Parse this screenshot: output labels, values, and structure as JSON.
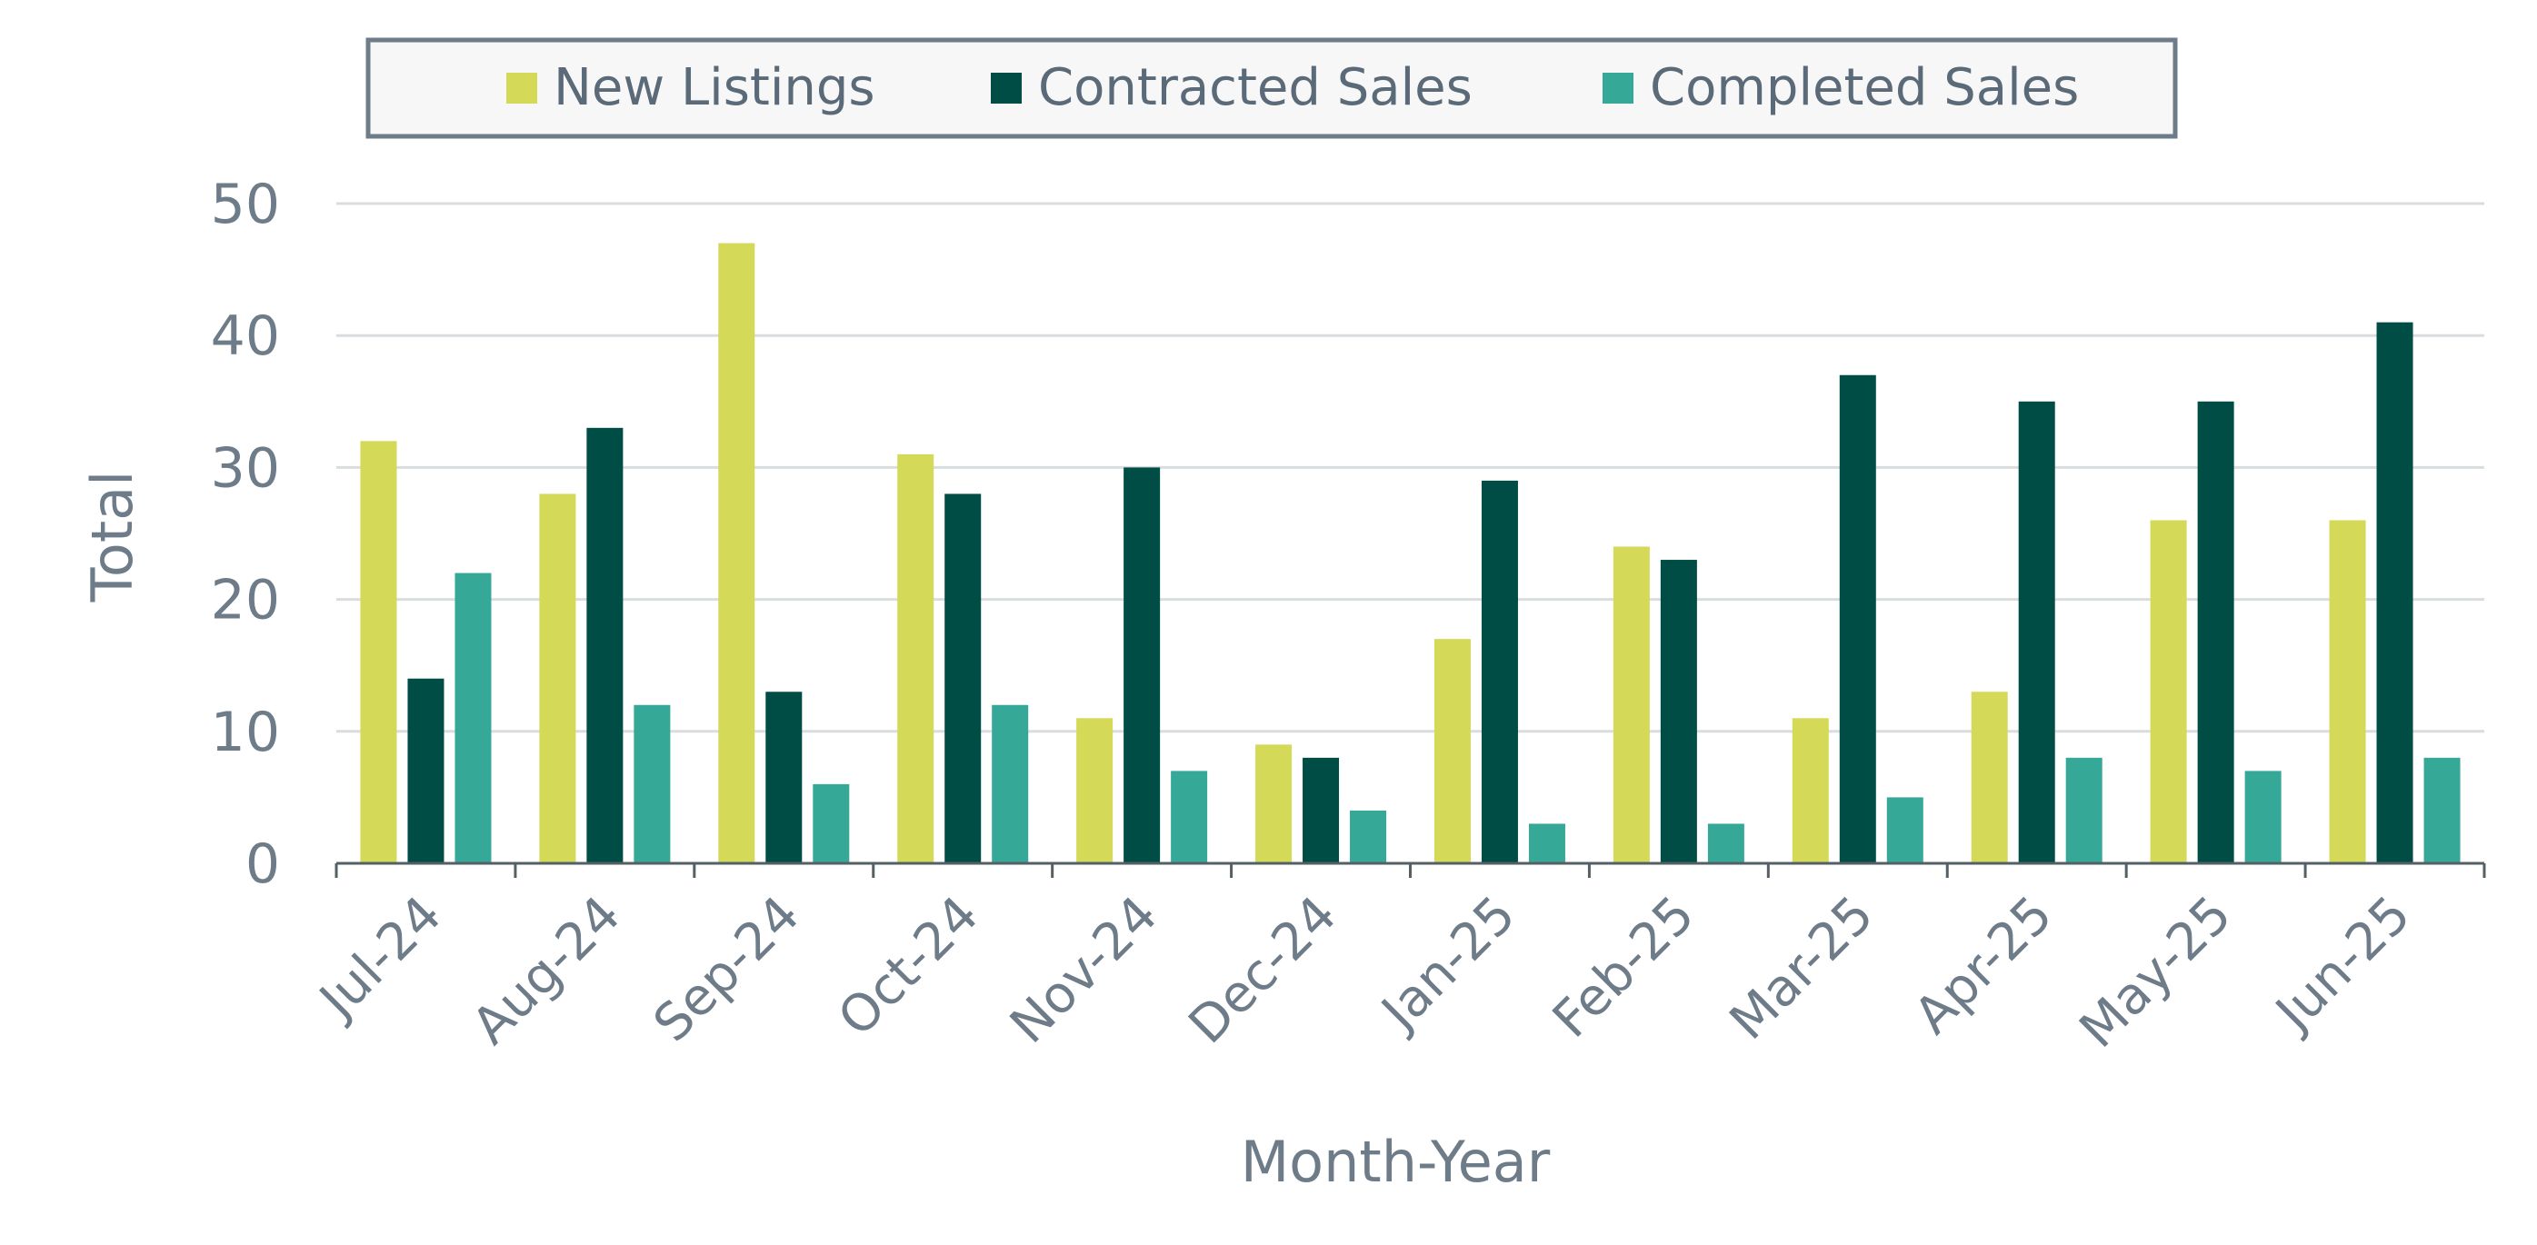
{
  "chart_data": {
    "type": "bar",
    "categories": [
      "Jul-24",
      "Aug-24",
      "Sep-24",
      "Oct-24",
      "Nov-24",
      "Dec-24",
      "Jan-25",
      "Feb-25",
      "Mar-25",
      "Apr-25",
      "May-25",
      "Jun-25"
    ],
    "series": [
      {
        "name": "New Listings",
        "color": "#d4d957",
        "values": [
          32,
          28,
          47,
          31,
          11,
          9,
          17,
          24,
          11,
          13,
          26,
          26
        ]
      },
      {
        "name": "Contracted Sales",
        "color": "#004d45",
        "values": [
          14,
          33,
          13,
          28,
          30,
          8,
          29,
          23,
          37,
          35,
          35,
          41
        ]
      },
      {
        "name": "Completed Sales",
        "color": "#35a898",
        "values": [
          22,
          12,
          6,
          12,
          7,
          4,
          3,
          3,
          5,
          8,
          7,
          8
        ]
      }
    ],
    "xlabel": "Month-Year",
    "ylabel": "Total",
    "ylim": [
      0,
      50
    ],
    "yticks": [
      "0",
      "10",
      "20",
      "30",
      "40",
      "50"
    ],
    "grid": true,
    "legend_position": "top"
  }
}
